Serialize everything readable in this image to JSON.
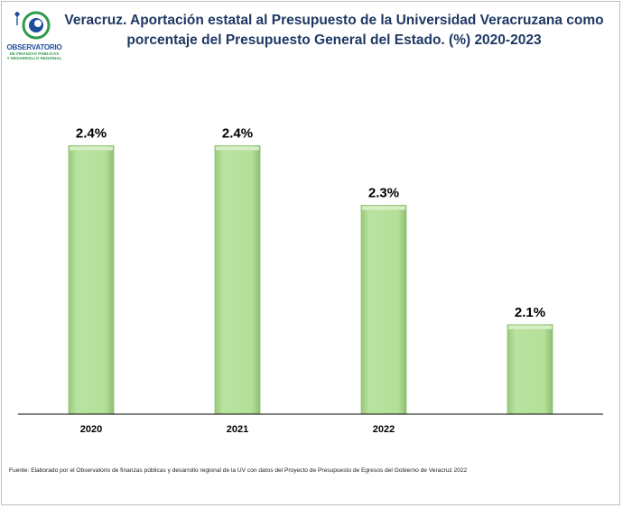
{
  "logo": {
    "name": "OBSERVATORIO",
    "sub1": "DE FINANZAS PÚBLICAS",
    "sub2": "Y DESARROLLO REGIONAL"
  },
  "title_lines": [
    "Veracruz. Aportación estatal al Presupuesto de la Universidad Veracruzana como",
    "porcentaje del Presupuesto General del Estado. (%) 2020-2023"
  ],
  "chart_data": {
    "type": "bar",
    "categories": [
      "2020",
      "2021",
      "2022",
      ""
    ],
    "values": [
      2.4,
      2.4,
      2.3,
      2.1
    ],
    "data_labels": [
      "2.4%",
      "2.4%",
      "2.3%",
      "2.1%"
    ],
    "title": "Veracruz. Aportación estatal al Presupuesto de la Universidad Veracruzana como porcentaje del Presupuesto General del Estado. (%) 2020-2023",
    "xlabel": "",
    "ylabel": "",
    "ylim": [
      1.95,
      2.44
    ],
    "grid": false,
    "legend": "none",
    "colors": {
      "bar_fill": "#b2de95",
      "bar_edge": "#8fbf72",
      "bar_top": "#d6efc4",
      "axis": "#000000"
    }
  },
  "source": "Fuente: Elaborado por el Observatorio de finanzas públicas y desarrollo regional de la UV con datos del Proyecto de Presupuesto de Egresos del Gobierno de Veracruz 2022"
}
